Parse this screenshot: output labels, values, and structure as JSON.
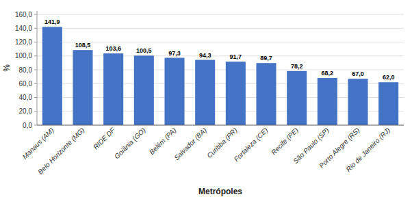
{
  "chart_data": {
    "type": "bar",
    "categories": [
      "Manaus (AM)",
      "Belo Horizonte (MG)",
      "RIDE DF",
      "Goiânia (GO)",
      "Belém (PA)",
      "Salvador (BA)",
      "Curitiba (PR)",
      "Fortaleza (CE)",
      "Recife (PE)",
      "São Paulo (SP)",
      "Porto Alegre (RS)",
      "Rio de Janeiro (RJ)"
    ],
    "values": [
      141.9,
      108.5,
      103.6,
      100.5,
      97.3,
      94.3,
      91.7,
      89.7,
      78.2,
      68.2,
      67.0,
      62.0
    ],
    "value_labels": [
      "141,9",
      "108,5",
      "103,6",
      "100,5",
      "97,3",
      "94,3",
      "91,7",
      "89,7",
      "78,2",
      "68,2",
      "67,0",
      "62,0"
    ],
    "data_labels": true,
    "color": "#4472C4",
    "xlabel": "Metrópoles",
    "ylabel": "%",
    "ylim": [
      0,
      165
    ],
    "yticks": [
      {
        "value": 0,
        "label": "0,0"
      },
      {
        "value": 20,
        "label": "20,0"
      },
      {
        "value": 40,
        "label": "40,0"
      },
      {
        "value": 60,
        "label": "60,0"
      },
      {
        "value": 80,
        "label": "80,0"
      },
      {
        "value": 100,
        "label": "100,0"
      },
      {
        "value": 120,
        "label": "120,0"
      },
      {
        "value": 140,
        "label": "140,0"
      },
      {
        "value": 160,
        "label": "160,0"
      }
    ],
    "grid": true
  }
}
